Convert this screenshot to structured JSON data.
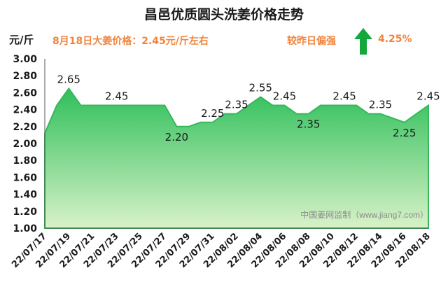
{
  "title": "昌邑优质圆头洗姜价格走势",
  "unit_label": "元/斤",
  "price_text": "8月18日大姜价格：2.45元/斤左右",
  "compare_text": "较昨日偏强",
  "change_pct": "4.25%",
  "watermark": "中国姜网监制（www.jiang7.com）",
  "colors": {
    "fill_top": "#2fbf5b",
    "fill_bottom": "#d8f2c8",
    "line": "#35b85a",
    "arrow": "#14a83c",
    "accent": "#f0843c"
  },
  "chart_data": {
    "type": "area",
    "title": "昌邑优质圆头洗姜价格走势",
    "ylabel": "元/斤",
    "xlabel": "",
    "ylim": [
      1.0,
      3.0
    ],
    "yticks": [
      "1.00",
      "1.20",
      "1.40",
      "1.60",
      "1.80",
      "2.00",
      "2.20",
      "2.40",
      "2.60",
      "2.80",
      "3.00"
    ],
    "x": [
      "22/07/17",
      "22/07/18",
      "22/07/19",
      "22/07/20",
      "22/07/21",
      "22/07/22",
      "22/07/23",
      "22/07/24",
      "22/07/25",
      "22/07/26",
      "22/07/27",
      "22/07/28",
      "22/07/29",
      "22/07/30",
      "22/07/31",
      "22/08/01",
      "22/08/02",
      "22/08/03",
      "22/08/04",
      "22/08/05",
      "22/08/06",
      "22/08/07",
      "22/08/08",
      "22/08/09",
      "22/08/10",
      "22/08/11",
      "22/08/12",
      "22/08/13",
      "22/08/14",
      "22/08/15",
      "22/08/16",
      "22/08/17",
      "22/08/18"
    ],
    "xtick_labels": [
      "22/07/17",
      "22/07/19",
      "22/07/21",
      "22/07/23",
      "22/07/25",
      "22/07/27",
      "22/07/29",
      "22/07/31",
      "22/08/02",
      "22/08/04",
      "22/08/06",
      "22/08/08",
      "22/08/10",
      "22/08/12",
      "22/08/14",
      "22/08/16",
      "22/08/18"
    ],
    "values": [
      2.12,
      2.45,
      2.65,
      2.45,
      2.45,
      2.45,
      2.45,
      2.45,
      2.45,
      2.45,
      2.45,
      2.2,
      2.2,
      2.25,
      2.25,
      2.35,
      2.35,
      2.45,
      2.55,
      2.45,
      2.45,
      2.35,
      2.35,
      2.45,
      2.45,
      2.45,
      2.45,
      2.35,
      2.35,
      2.3,
      2.25,
      2.35,
      2.45
    ],
    "data_labels": [
      {
        "i": 2,
        "text": "2.65",
        "pos": "above"
      },
      {
        "i": 6,
        "text": "2.45",
        "pos": "above"
      },
      {
        "i": 11,
        "text": "2.20",
        "pos": "below"
      },
      {
        "i": 14,
        "text": "2.25",
        "pos": "above"
      },
      {
        "i": 16,
        "text": "2.35",
        "pos": "above"
      },
      {
        "i": 18,
        "text": "2.55",
        "pos": "above"
      },
      {
        "i": 20,
        "text": "2.45",
        "pos": "above"
      },
      {
        "i": 22,
        "text": "2.35",
        "pos": "below"
      },
      {
        "i": 25,
        "text": "2.45",
        "pos": "above"
      },
      {
        "i": 28,
        "text": "2.35",
        "pos": "above"
      },
      {
        "i": 30,
        "text": "2.25",
        "pos": "below"
      },
      {
        "i": 32,
        "text": "2.45",
        "pos": "above"
      }
    ],
    "grid": false,
    "legend": "none"
  }
}
